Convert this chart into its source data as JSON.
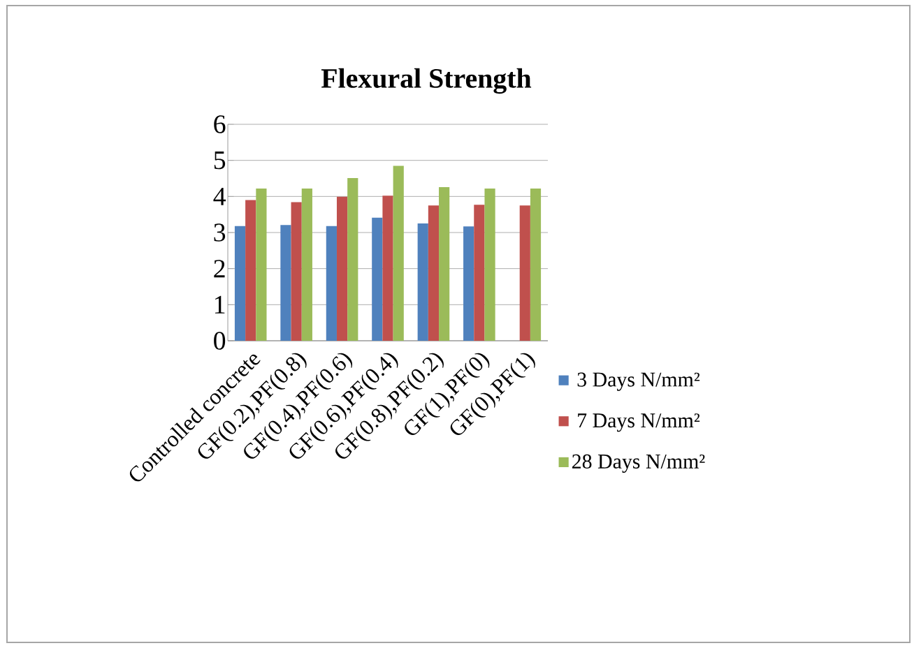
{
  "chart_data": {
    "type": "bar",
    "title": "Flexural Strength",
    "categories": [
      "Controlled concrete",
      "GF(0.2),PF(0.8)",
      "GF(0.4),PF(0.6)",
      "GF(0.6),PF(0.4)",
      "GF(0.8),PF(0.2)",
      "GF(1),PF(0)",
      "GF(0),PF(1)"
    ],
    "series": [
      {
        "name": "3 Days N/mm²",
        "color": "#4f81bd",
        "values": [
          3.18,
          3.21,
          3.18,
          3.41,
          3.25,
          3.17,
          null
        ]
      },
      {
        "name": "7 Days N/mm²",
        "color": "#c0504d",
        "values": [
          3.9,
          3.84,
          3.99,
          4.02,
          3.75,
          3.77,
          3.75
        ]
      },
      {
        "name": "28 Days N/mm²",
        "color": "#9bbb59",
        "values": [
          4.22,
          4.22,
          4.51,
          4.85,
          4.26,
          4.22,
          4.22
        ]
      }
    ],
    "ylim": [
      0,
      6
    ],
    "yticks": [
      0,
      1,
      2,
      3,
      4,
      5,
      6
    ],
    "grid": "y",
    "legend": "right"
  }
}
